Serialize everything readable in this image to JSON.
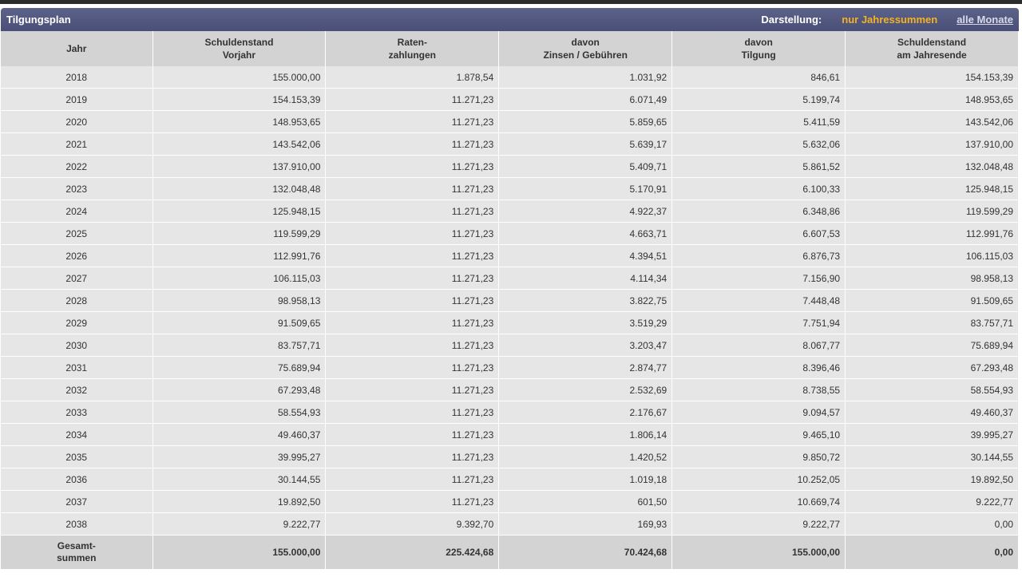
{
  "title": "Tilgungsplan",
  "darstellung_label": "Darstellung:",
  "option_active": "nur Jahressummen",
  "option_link": "alle Monate",
  "headers": [
    [
      "Jahr"
    ],
    [
      "Schuldenstand",
      "Vorjahr"
    ],
    [
      "Raten-",
      "zahlungen"
    ],
    [
      "davon",
      "Zinsen / Gebühren"
    ],
    [
      "davon",
      "Tilgung"
    ],
    [
      "Schuldenstand",
      "am Jahresende"
    ]
  ],
  "rows": [
    [
      "2018",
      "155.000,00",
      "1.878,54",
      "1.031,92",
      "846,61",
      "154.153,39"
    ],
    [
      "2019",
      "154.153,39",
      "11.271,23",
      "6.071,49",
      "5.199,74",
      "148.953,65"
    ],
    [
      "2020",
      "148.953,65",
      "11.271,23",
      "5.859,65",
      "5.411,59",
      "143.542,06"
    ],
    [
      "2021",
      "143.542,06",
      "11.271,23",
      "5.639,17",
      "5.632,06",
      "137.910,00"
    ],
    [
      "2022",
      "137.910,00",
      "11.271,23",
      "5.409,71",
      "5.861,52",
      "132.048,48"
    ],
    [
      "2023",
      "132.048,48",
      "11.271,23",
      "5.170,91",
      "6.100,33",
      "125.948,15"
    ],
    [
      "2024",
      "125.948,15",
      "11.271,23",
      "4.922,37",
      "6.348,86",
      "119.599,29"
    ],
    [
      "2025",
      "119.599,29",
      "11.271,23",
      "4.663,71",
      "6.607,53",
      "112.991,76"
    ],
    [
      "2026",
      "112.991,76",
      "11.271,23",
      "4.394,51",
      "6.876,73",
      "106.115,03"
    ],
    [
      "2027",
      "106.115,03",
      "11.271,23",
      "4.114,34",
      "7.156,90",
      "98.958,13"
    ],
    [
      "2028",
      "98.958,13",
      "11.271,23",
      "3.822,75",
      "7.448,48",
      "91.509,65"
    ],
    [
      "2029",
      "91.509,65",
      "11.271,23",
      "3.519,29",
      "7.751,94",
      "83.757,71"
    ],
    [
      "2030",
      "83.757,71",
      "11.271,23",
      "3.203,47",
      "8.067,77",
      "75.689,94"
    ],
    [
      "2031",
      "75.689,94",
      "11.271,23",
      "2.874,77",
      "8.396,46",
      "67.293,48"
    ],
    [
      "2032",
      "67.293,48",
      "11.271,23",
      "2.532,69",
      "8.738,55",
      "58.554,93"
    ],
    [
      "2033",
      "58.554,93",
      "11.271,23",
      "2.176,67",
      "9.094,57",
      "49.460,37"
    ],
    [
      "2034",
      "49.460,37",
      "11.271,23",
      "1.806,14",
      "9.465,10",
      "39.995,27"
    ],
    [
      "2035",
      "39.995,27",
      "11.271,23",
      "1.420,52",
      "9.850,72",
      "30.144,55"
    ],
    [
      "2036",
      "30.144,55",
      "11.271,23",
      "1.019,18",
      "10.252,05",
      "19.892,50"
    ],
    [
      "2037",
      "19.892,50",
      "11.271,23",
      "601,50",
      "10.669,74",
      "9.222,77"
    ],
    [
      "2038",
      "9.222,77",
      "9.392,70",
      "169,93",
      "9.222,77",
      "0,00"
    ]
  ],
  "totals": {
    "label": [
      "Gesamt-",
      "summen"
    ],
    "values": [
      "155.000,00",
      "225.424,68",
      "70.424,68",
      "155.000,00",
      "0,00"
    ]
  }
}
